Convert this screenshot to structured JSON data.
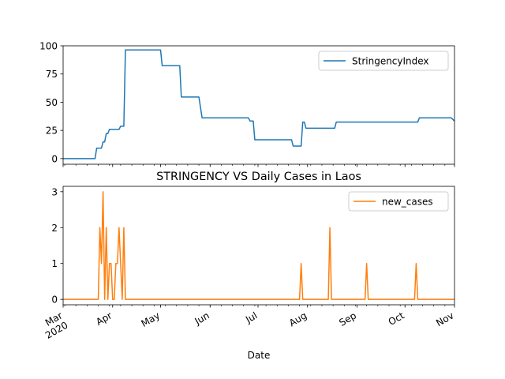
{
  "chart_data": [
    {
      "type": "line",
      "title": "",
      "xlabel": "",
      "ylabel": "",
      "x_range": [
        "2020-03-01",
        "2020-11-01"
      ],
      "ylim": [
        -5,
        100
      ],
      "yticks": [
        0,
        25,
        50,
        75,
        100
      ],
      "grid": false,
      "legend_position": "top-right",
      "series": [
        {
          "name": "StringencyIndex",
          "color": "#1f77b4",
          "points": [
            [
              "2020-03-01",
              0
            ],
            [
              "2020-03-21",
              0
            ],
            [
              "2020-03-22",
              9.3
            ],
            [
              "2020-03-25",
              9.3
            ],
            [
              "2020-03-26",
              14.8
            ],
            [
              "2020-03-27",
              14.8
            ],
            [
              "2020-03-28",
              22.2
            ],
            [
              "2020-03-29",
              22.2
            ],
            [
              "2020-03-30",
              25.9
            ],
            [
              "2020-04-05",
              25.9
            ],
            [
              "2020-04-06",
              28.7
            ],
            [
              "2020-04-08",
              28.7
            ],
            [
              "2020-04-09",
              96.3
            ],
            [
              "2020-05-01",
              96.3
            ],
            [
              "2020-05-02",
              82.4
            ],
            [
              "2020-05-13",
              82.4
            ],
            [
              "2020-05-14",
              54.6
            ],
            [
              "2020-05-25",
              54.6
            ],
            [
              "2020-05-27",
              36.1
            ],
            [
              "2020-06-25",
              36.1
            ],
            [
              "2020-06-26",
              33.3
            ],
            [
              "2020-06-28",
              33.3
            ],
            [
              "2020-06-29",
              16.7
            ],
            [
              "2020-07-22",
              16.7
            ],
            [
              "2020-07-23",
              11.1
            ],
            [
              "2020-07-28",
              11.1
            ],
            [
              "2020-07-29",
              32.4
            ],
            [
              "2020-07-30",
              32.4
            ],
            [
              "2020-07-31",
              26.9
            ],
            [
              "2020-08-18",
              26.9
            ],
            [
              "2020-08-19",
              32.4
            ],
            [
              "2020-10-09",
              32.4
            ],
            [
              "2020-10-10",
              36.1
            ],
            [
              "2020-10-30",
              36.1
            ],
            [
              "2020-11-01",
              33.3
            ]
          ]
        }
      ]
    },
    {
      "type": "line",
      "title": "STRINGENCY VS Daily Cases in Laos",
      "xlabel": "Date",
      "ylabel": "",
      "x_range": [
        "2020-03-01",
        "2020-11-01"
      ],
      "ylim": [
        -0.15,
        3.15
      ],
      "yticks": [
        0,
        1,
        2,
        3
      ],
      "grid": false,
      "legend_position": "top-right",
      "xtick_labels": [
        {
          "date": "2020-03-01",
          "label": "Mar",
          "year": "2020"
        },
        {
          "date": "2020-04-01",
          "label": "Apr"
        },
        {
          "date": "2020-05-01",
          "label": "May"
        },
        {
          "date": "2020-06-01",
          "label": "Jun"
        },
        {
          "date": "2020-07-01",
          "label": "Jul"
        },
        {
          "date": "2020-08-01",
          "label": "Aug"
        },
        {
          "date": "2020-09-01",
          "label": "Sep"
        },
        {
          "date": "2020-10-01",
          "label": "Oct"
        },
        {
          "date": "2020-11-01",
          "label": "Nov"
        }
      ],
      "series": [
        {
          "name": "new_cases",
          "color": "#ff7f0e",
          "points": [
            [
              "2020-03-01",
              0
            ],
            [
              "2020-03-23",
              0
            ],
            [
              "2020-03-24",
              2
            ],
            [
              "2020-03-25",
              1
            ],
            [
              "2020-03-26",
              3
            ],
            [
              "2020-03-27",
              0
            ],
            [
              "2020-03-28",
              2
            ],
            [
              "2020-03-29",
              0
            ],
            [
              "2020-03-30",
              1
            ],
            [
              "2020-03-31",
              1
            ],
            [
              "2020-04-01",
              0
            ],
            [
              "2020-04-02",
              0
            ],
            [
              "2020-04-03",
              1
            ],
            [
              "2020-04-04",
              1
            ],
            [
              "2020-04-05",
              2
            ],
            [
              "2020-04-06",
              1
            ],
            [
              "2020-04-07",
              0
            ],
            [
              "2020-04-08",
              2
            ],
            [
              "2020-04-09",
              0
            ],
            [
              "2020-07-27",
              0
            ],
            [
              "2020-07-28",
              1
            ],
            [
              "2020-07-29",
              0
            ],
            [
              "2020-08-14",
              0
            ],
            [
              "2020-08-15",
              2
            ],
            [
              "2020-08-16",
              0
            ],
            [
              "2020-09-06",
              0
            ],
            [
              "2020-09-07",
              1
            ],
            [
              "2020-09-08",
              0
            ],
            [
              "2020-10-07",
              0
            ],
            [
              "2020-10-08",
              1
            ],
            [
              "2020-10-09",
              0
            ],
            [
              "2020-11-01",
              0
            ]
          ]
        }
      ]
    }
  ]
}
